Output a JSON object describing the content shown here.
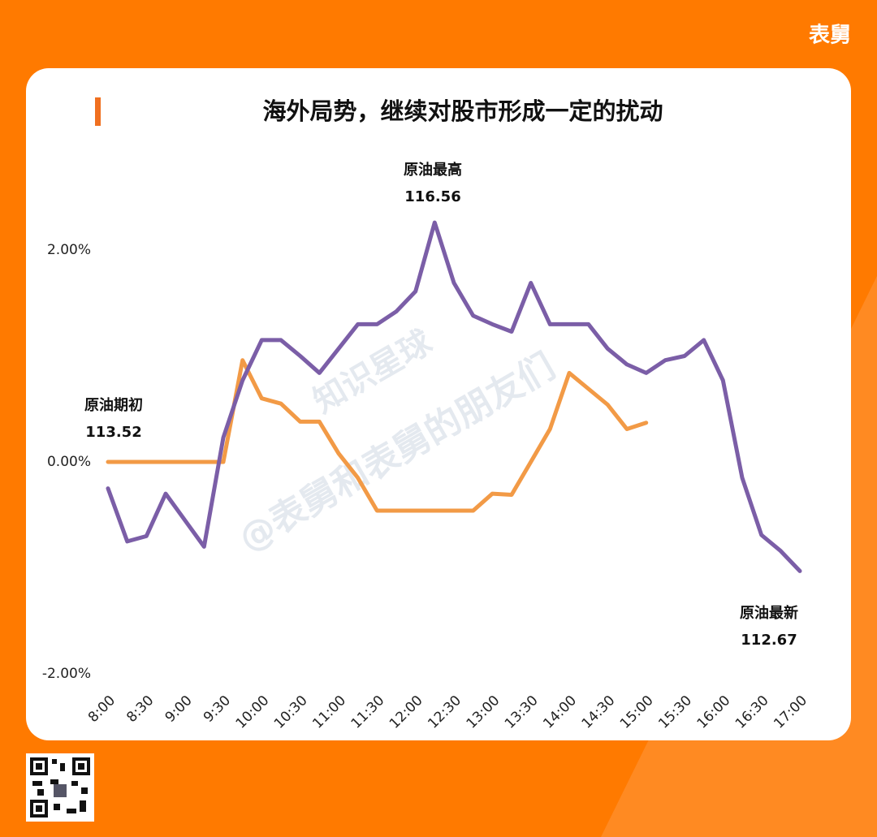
{
  "brand": "表舅",
  "watermark": [
    "@表舅和表舅的朋友们",
    "知识星球"
  ],
  "chart_data": {
    "type": "line",
    "title": "海外局势，继续对股市形成一定的扰动",
    "x": [
      8,
      8.25,
      8.5,
      8.75,
      9,
      9.25,
      9.5,
      9.75,
      10,
      10.25,
      10.5,
      10.75,
      11,
      11.25,
      11.5,
      11.75,
      12,
      12.25,
      12.5,
      12.75,
      13,
      13.25,
      13.5,
      13.75,
      14,
      14.25,
      14.5,
      14.75,
      15,
      15.25,
      15.5,
      15.75,
      16,
      16.25,
      16.5,
      16.75,
      17
    ],
    "series": [
      {
        "color": "#7b5ea7",
        "values": [
          -0.25,
          -0.75,
          -0.7,
          -0.3,
          -0.55,
          -0.8,
          0.23,
          0.77,
          1.15,
          1.15,
          1.0,
          0.84,
          1.07,
          1.3,
          1.3,
          1.42,
          1.61,
          2.26,
          1.69,
          1.38,
          1.3,
          1.23,
          1.69,
          1.3,
          1.3,
          1.3,
          1.07,
          0.92,
          0.84,
          0.96,
          1.0,
          1.15,
          0.77,
          -0.15,
          -0.69,
          -0.84,
          -1.03
        ]
      },
      {
        "color": "#f29a46",
        "values": [
          0,
          0,
          0,
          0,
          0,
          0,
          0,
          0.96,
          0.6,
          0.55,
          0.38,
          0.38,
          0.08,
          -0.15,
          -0.46,
          -0.46,
          -0.46,
          -0.46,
          -0.46,
          -0.46,
          -0.3,
          -0.31,
          0,
          0.31,
          0.84,
          0.69,
          0.54,
          0.31,
          0.37,
          null,
          null,
          null,
          null,
          null,
          null,
          null,
          null
        ]
      }
    ],
    "xlim": [
      8,
      17
    ],
    "xticks": [
      {
        "value": 8,
        "label": "8:00"
      },
      {
        "value": 8.5,
        "label": "8:30"
      },
      {
        "value": 9,
        "label": "9:00"
      },
      {
        "value": 9.5,
        "label": "9:30"
      },
      {
        "value": 10,
        "label": "10:00"
      },
      {
        "value": 10.5,
        "label": "10:30"
      },
      {
        "value": 11,
        "label": "11:00"
      },
      {
        "value": 11.5,
        "label": "11:30"
      },
      {
        "value": 12,
        "label": "12:00"
      },
      {
        "value": 12.5,
        "label": "12:30"
      },
      {
        "value": 13,
        "label": "13:00"
      },
      {
        "value": 13.5,
        "label": "13:30"
      },
      {
        "value": 14,
        "label": "14:00"
      },
      {
        "value": 14.5,
        "label": "14:30"
      },
      {
        "value": 15,
        "label": "15:00"
      },
      {
        "value": 15.5,
        "label": "15:30"
      },
      {
        "value": 16,
        "label": "16:00"
      },
      {
        "value": 16.5,
        "label": "16:30"
      },
      {
        "value": 17,
        "label": "17:00"
      }
    ],
    "ylim": [
      -2,
      2.5
    ],
    "yticks": [
      {
        "value": 2,
        "label": "2.00%"
      },
      {
        "value": 0,
        "label": "0.00%"
      },
      {
        "value": -2,
        "label": "-2.00%"
      }
    ],
    "annotations": [
      {
        "text": "原油期初",
        "value": 113.52
      },
      {
        "text": "原油最高",
        "value": 116.56
      },
      {
        "text": "原油最新",
        "value": 112.67
      }
    ]
  }
}
